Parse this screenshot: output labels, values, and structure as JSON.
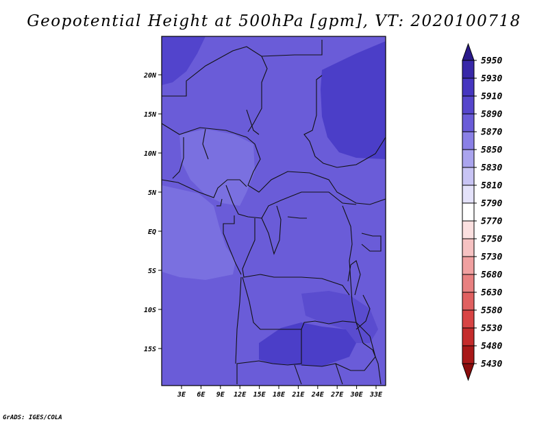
{
  "title": "Geopotential Height at 500hPa [gpm], VT: 2020100718",
  "credit": "GrADS: IGES/COLA",
  "map": {
    "lat_ticks": [
      "20N",
      "15N",
      "10N",
      "5N",
      "EQ",
      "5S",
      "10S",
      "15S"
    ],
    "lon_ticks": [
      "3E",
      "6E",
      "9E",
      "12E",
      "15E",
      "18E",
      "21E",
      "24E",
      "27E",
      "30E",
      "33E"
    ]
  },
  "colorbar": {
    "levels": [
      "5950",
      "5930",
      "5910",
      "5890",
      "5870",
      "5850",
      "5830",
      "5810",
      "5790",
      "5770",
      "5750",
      "5730",
      "5680",
      "5630",
      "5580",
      "5530",
      "5480",
      "5430"
    ],
    "colors": [
      "#2a1a8a",
      "#3828a8",
      "#4636c0",
      "#5646cc",
      "#6a5cd8",
      "#8a80e6",
      "#aaa4ee",
      "#c8c4f4",
      "#e4e2fa",
      "#ffffff",
      "#fbe0e0",
      "#f6c2c2",
      "#f0a0a0",
      "#e88080",
      "#e06060",
      "#d84444",
      "#c42c2c",
      "#a81818",
      "#8a0c0c"
    ]
  }
}
